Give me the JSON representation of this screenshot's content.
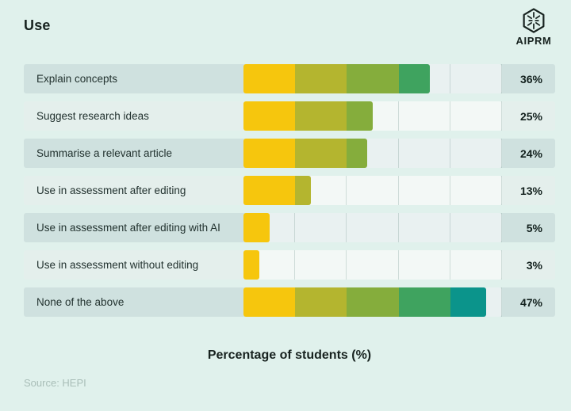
{
  "header": {
    "title": "Use",
    "brand": "AIPRM"
  },
  "footer": {
    "source": "Source: HEPI"
  },
  "colors": {
    "page_bg": "#e0f1ec",
    "row_dark_bg": "#cfe1df",
    "row_light_bg": "#e4efec",
    "track_bg": "rgba(255,255,255,0.55)",
    "gridline": "rgba(125,156,150,0.30)",
    "text_dark": "#17221f",
    "source_text": "#a9beb8"
  },
  "chart_data": {
    "type": "bar",
    "orientation": "horizontal",
    "title": "Use",
    "categories": [
      "Explain concepts",
      "Suggest research ideas",
      "Summarise a relevant article",
      "Use in assessment after editing",
      "Use in assessment after editing with AI",
      "Use in assessment without editing",
      "None of the above"
    ],
    "values": [
      36,
      25,
      24,
      13,
      5,
      3,
      47
    ],
    "value_suffix": "%",
    "value_labels": [
      "36%",
      "25%",
      "24%",
      "13%",
      "5%",
      "3%",
      "47%"
    ],
    "xlabel": "Percentage of students (%)",
    "ylabel": "",
    "xlim": [
      0,
      50
    ],
    "gridline_interval": 10,
    "grid": true,
    "legend_position": "none",
    "decile_colors": [
      "#F6C60D",
      "#B4B52F",
      "#85AD3C",
      "#3FA35F",
      "#0B948B"
    ],
    "decile_color_note": "each 10% band of a bar is filled with the next color in decile_colors (yellow to teal gradient)"
  }
}
